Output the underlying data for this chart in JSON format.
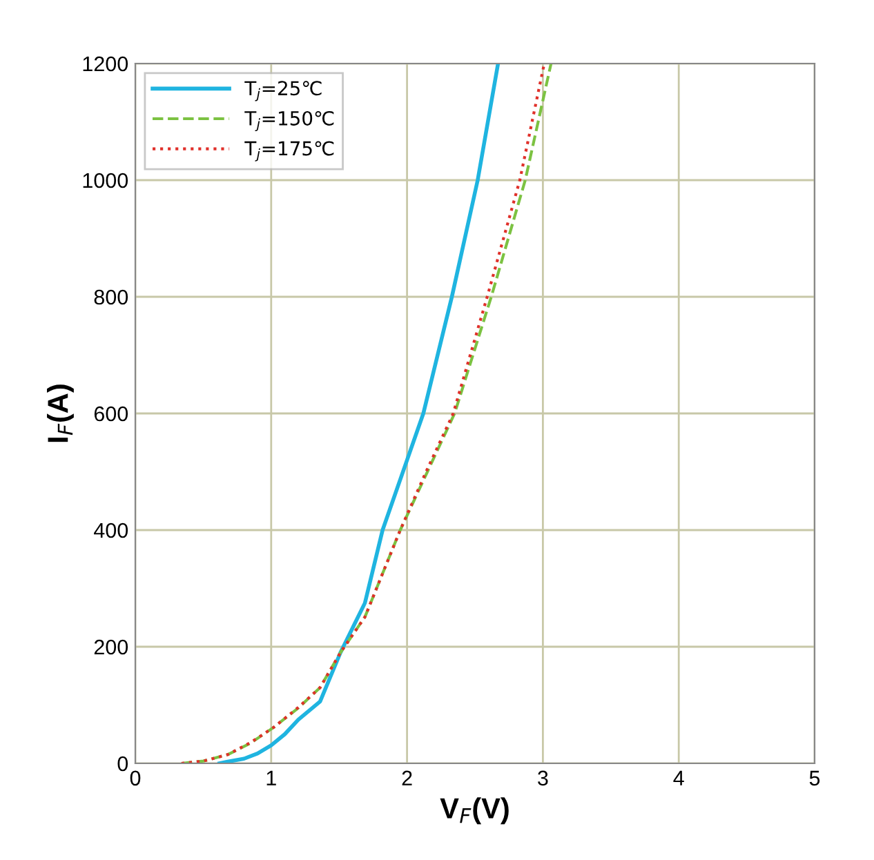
{
  "chart_data": {
    "type": "line",
    "xlabel": "V$_{F}$(V)",
    "ylabel": "I$_{F}$(A)",
    "xlim": [
      0,
      5
    ],
    "ylim": [
      0,
      1200
    ],
    "xticks": [
      0,
      1,
      2,
      3,
      4,
      5
    ],
    "yticks": [
      0,
      200,
      400,
      600,
      800,
      1000,
      1200
    ],
    "grid": true,
    "legend": "top left",
    "series": [
      {
        "name": "T$_{j}$=25℃",
        "color": "#1fb4e0",
        "line_style": "solid",
        "x": [
          0.62,
          0.68,
          0.8,
          0.9,
          1.0,
          1.1,
          1.2,
          1.36,
          1.51,
          1.69,
          1.82,
          2.0,
          2.12,
          2.33,
          2.52,
          2.67
        ],
        "values": [
          0,
          3,
          8,
          17,
          31,
          50,
          75,
          106,
          190,
          275,
          400,
          520,
          600,
          800,
          1000,
          1200
        ]
      },
      {
        "name": "T$_{j}$=150℃",
        "color": "#7cc242",
        "line_style": "dashed",
        "x": [
          0.34,
          0.5,
          0.68,
          0.85,
          1.02,
          1.2,
          1.36,
          1.51,
          1.69,
          1.95,
          2.15,
          2.35,
          2.62,
          2.87,
          3.06
        ],
        "values": [
          0,
          4,
          15,
          35,
          62,
          95,
          130,
          190,
          251,
          400,
          500,
          600,
          800,
          1000,
          1200
        ]
      },
      {
        "name": "T$_{j}$=175℃",
        "color": "#e0302a",
        "line_style": "dotted",
        "x": [
          0.34,
          0.5,
          0.68,
          0.85,
          1.02,
          1.2,
          1.36,
          1.51,
          1.69,
          1.95,
          2.14,
          2.34,
          2.59,
          2.83,
          3.01
        ],
        "values": [
          0,
          4,
          15,
          36,
          62,
          96,
          130,
          190,
          251,
          400,
          500,
          600,
          800,
          1000,
          1200
        ]
      }
    ]
  }
}
